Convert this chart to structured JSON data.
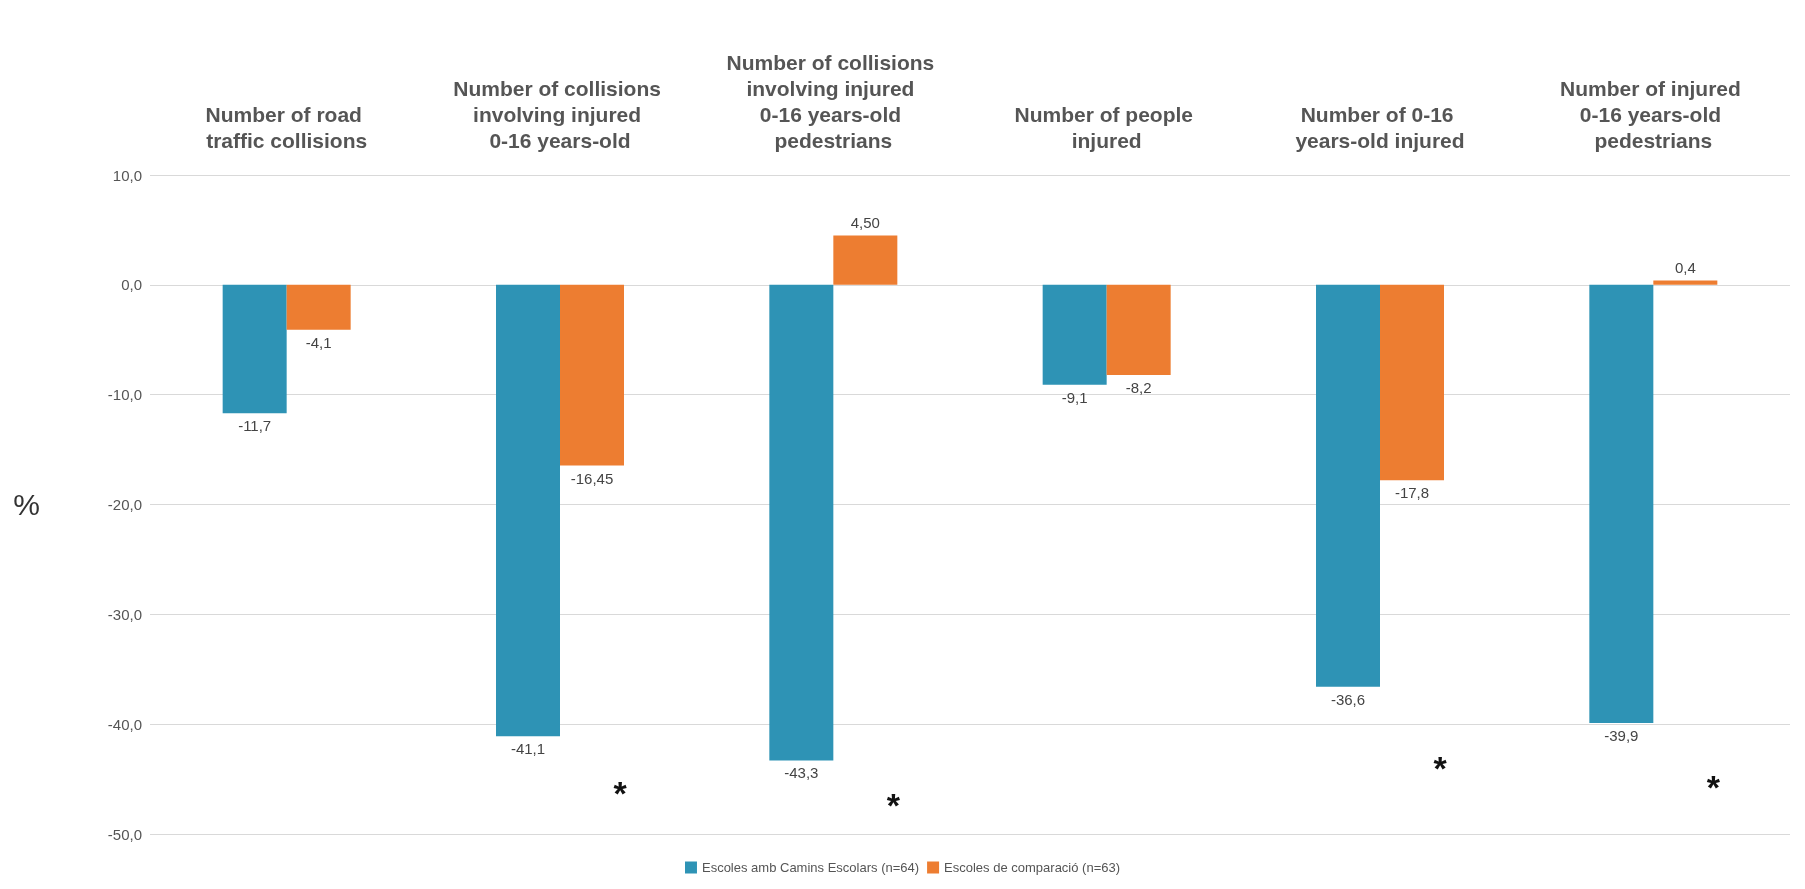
{
  "chart_data": {
    "type": "bar",
    "categories": [
      "Number of road traffic collisions",
      "Number of collisions involving injured 0-16 years-old",
      "Number of collisions involving injured 0-16 years-old pedestrians",
      "Number of people injured",
      "Number of 0-16 years-old injured",
      "Number of injured 0-16 years-old pedestrians"
    ],
    "series": [
      {
        "name": "Escoles amb Camins Escolars (n=64)",
        "color": "#2e93b5",
        "values": [
          -11.7,
          -41.1,
          -43.3,
          -9.1,
          -36.6,
          -39.9
        ],
        "value_labels": [
          "-11,7",
          "-41,1",
          "-43,3",
          "-9,1",
          "-36,6",
          "-39,9"
        ]
      },
      {
        "name": "Escoles de comparació (n=63)",
        "color": "#ed7d31",
        "values": [
          -4.1,
          -16.45,
          4.5,
          -8.2,
          -17.8,
          0.4
        ],
        "value_labels": [
          "-4,1",
          "-16,45",
          "4,50",
          "-8,2",
          "-17,8",
          "0,4"
        ]
      }
    ],
    "ylabel": "%",
    "ylim": [
      -50,
      10
    ],
    "yticks": [
      {
        "value": -50,
        "label": "-50,0"
      },
      {
        "value": -40,
        "label": "-40,0"
      },
      {
        "value": -30,
        "label": "-30,0"
      },
      {
        "value": -20,
        "label": "-20,0"
      },
      {
        "value": -10,
        "label": "-10,0"
      },
      {
        "value": 0,
        "label": "0,0"
      },
      {
        "value": 10,
        "label": "10,0"
      }
    ],
    "grid": "y",
    "legend": "bottom",
    "annotations": [
      {
        "text": "*",
        "x": "Number of collisions involving injured 0-16 years-old",
        "y": -41.1
      },
      {
        "text": "*",
        "x": "Number of collisions involving injured 0-16 years-old pedestrians",
        "y": -43.3
      },
      {
        "text": "*",
        "x": "Number of 0-16 years-old injured",
        "y": -36.6
      },
      {
        "text": "*",
        "x": "Number of injured 0-16 years-old pedestrians",
        "y": -39.9
      }
    ]
  }
}
